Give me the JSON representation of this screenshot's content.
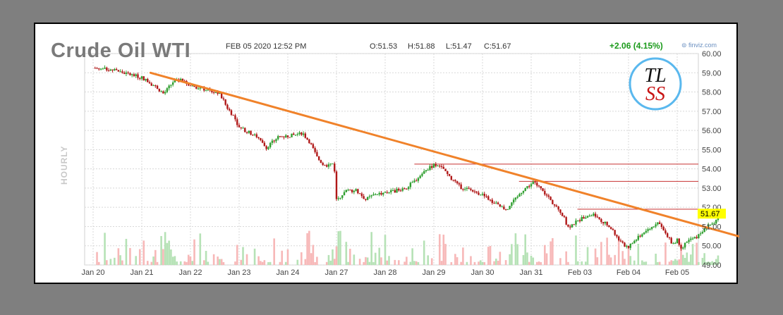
{
  "header": {
    "title": "Crude Oil WTI",
    "datetime": "FEB 05 2020 12:52 PM",
    "open": "O:51.53",
    "high": "H:51.88",
    "low": "L:51.47",
    "close": "C:51.67",
    "change": "+2.06 (4.15%)",
    "source": "⊜ finviz.com",
    "interval": "HOURLY",
    "logo_text": [
      "TL",
      "SS"
    ]
  },
  "colors": {
    "up": "#2e9e2e",
    "down": "#b01818",
    "trendline": "#f0822a",
    "resistance": "#c83232",
    "price_flag": "#ffff00",
    "vol_up": "#b6e2b6",
    "vol_down": "#f7b8b8",
    "logo_ring": "#5ab8ee"
  },
  "chart_data": {
    "type": "candlestick",
    "title": "Crude Oil WTI",
    "ylabel": "",
    "xlabel": "",
    "ylim": [
      49.0,
      60.0
    ],
    "yticks": [
      "60.00",
      "59.00",
      "58.00",
      "57.00",
      "56.00",
      "55.00",
      "54.00",
      "53.00",
      "52.00",
      "51.00",
      "50.00",
      "49.00"
    ],
    "x_sessions": [
      "Jan 20",
      "Jan 21",
      "Jan 22",
      "Jan 23",
      "Jan 24",
      "Jan 27",
      "Jan 28",
      "Jan 29",
      "Jan 30",
      "Jan 31",
      "Feb 03",
      "Feb 04",
      "Feb 05"
    ],
    "xticks": [
      {
        "label": "Jan 20",
        "session": 0
      },
      {
        "label": "Jan 21",
        "session": 1
      },
      {
        "label": "Jan 22",
        "session": 2
      },
      {
        "label": "Jan 23",
        "session": 3
      },
      {
        "label": "Jan 24",
        "session": 4
      },
      {
        "label": "Jan 27",
        "session": 5
      },
      {
        "label": "Jan 28",
        "session": 6
      },
      {
        "label": "Jan 29",
        "session": 7
      },
      {
        "label": "Jan 30",
        "session": 8
      },
      {
        "label": "Jan 31",
        "session": 9
      },
      {
        "label": "Feb 03",
        "session": 10
      },
      {
        "label": "Feb 04",
        "session": 11
      },
      {
        "label": "Feb 05",
        "session": 12
      }
    ],
    "price_path": [
      [
        0.0,
        59.25
      ],
      [
        0.4,
        59.15
      ],
      [
        0.7,
        58.95
      ],
      [
        1.0,
        58.75
      ],
      [
        1.3,
        58.25
      ],
      [
        1.45,
        57.9
      ],
      [
        1.65,
        58.55
      ],
      [
        1.8,
        58.6
      ],
      [
        2.0,
        58.35
      ],
      [
        2.2,
        58.2
      ],
      [
        2.4,
        58.05
      ],
      [
        2.6,
        57.9
      ],
      [
        2.75,
        57.2
      ],
      [
        2.9,
        56.7
      ],
      [
        3.0,
        56.15
      ],
      [
        3.2,
        55.9
      ],
      [
        3.35,
        55.7
      ],
      [
        3.55,
        55.1
      ],
      [
        3.8,
        55.65
      ],
      [
        4.1,
        55.75
      ],
      [
        4.3,
        55.85
      ],
      [
        4.45,
        55.4
      ],
      [
        4.6,
        54.6
      ],
      [
        4.75,
        54.15
      ],
      [
        4.95,
        54.3
      ],
      [
        5.0,
        52.4
      ],
      [
        5.2,
        52.85
      ],
      [
        5.4,
        52.9
      ],
      [
        5.6,
        52.4
      ],
      [
        5.8,
        52.7
      ],
      [
        6.0,
        52.75
      ],
      [
        6.2,
        52.85
      ],
      [
        6.45,
        53.05
      ],
      [
        6.6,
        53.35
      ],
      [
        6.8,
        53.85
      ],
      [
        7.0,
        54.2
      ],
      [
        7.2,
        54.0
      ],
      [
        7.35,
        53.45
      ],
      [
        7.55,
        53.05
      ],
      [
        7.75,
        52.9
      ],
      [
        8.0,
        52.65
      ],
      [
        8.2,
        52.3
      ],
      [
        8.35,
        52.05
      ],
      [
        8.5,
        51.9
      ],
      [
        8.6,
        52.25
      ],
      [
        8.85,
        52.95
      ],
      [
        9.05,
        53.3
      ],
      [
        9.2,
        52.95
      ],
      [
        9.45,
        52.2
      ],
      [
        9.65,
        51.6
      ],
      [
        9.75,
        50.95
      ],
      [
        9.9,
        51.2
      ],
      [
        10.1,
        51.5
      ],
      [
        10.3,
        51.65
      ],
      [
        10.45,
        51.3
      ],
      [
        10.65,
        50.9
      ],
      [
        10.85,
        50.1
      ],
      [
        11.0,
        49.95
      ],
      [
        11.1,
        50.2
      ],
      [
        11.3,
        50.65
      ],
      [
        11.5,
        51.0
      ],
      [
        11.6,
        51.3
      ],
      [
        11.75,
        50.65
      ],
      [
        11.9,
        50.1
      ],
      [
        12.0,
        50.3
      ],
      [
        12.1,
        49.85
      ],
      [
        12.2,
        50.25
      ],
      [
        12.4,
        50.45
      ],
      [
        12.6,
        50.95
      ],
      [
        12.75,
        51.2
      ],
      [
        12.88,
        51.65
      ],
      [
        12.95,
        51.67
      ]
    ],
    "trendline": {
      "from": [
        1.18,
        59.0
      ],
      "to": [
        13.75,
        50.15
      ]
    },
    "resistance_levels": [
      {
        "value": 54.25,
        "from_session": 6.6
      },
      {
        "value": 53.35,
        "from_session": 8.75
      },
      {
        "value": 51.9,
        "from_session": 9.95
      }
    ],
    "last_price": "51.67",
    "last_value": 51.67
  }
}
